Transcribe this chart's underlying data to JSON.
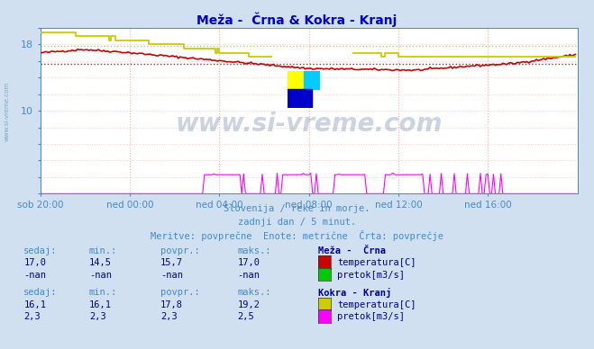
{
  "title": "Meža -  Črna & Kokra - Kranj",
  "title_color": "#0000cc",
  "bg_color": "#d0e0f0",
  "plot_bg_color": "#ffffff",
  "xlim": [
    0,
    288
  ],
  "ylim": [
    0,
    20
  ],
  "xtick_labels": [
    "sob 20:00",
    "ned 00:00",
    "ned 04:00",
    "ned 08:00",
    "ned 12:00",
    "ned 16:00"
  ],
  "xtick_positions": [
    0,
    48,
    96,
    144,
    192,
    240
  ],
  "n_points": 288,
  "mexa_crna_temp_color": "#cc0000",
  "mexa_crna_temp_avg": 15.7,
  "kokra_kranj_temp_color": "#cccc00",
  "kokra_kranj_temp_avg": 17.8,
  "kokra_kranj_pretok_color": "#ff00ff",
  "watermark_text": "www.si-vreme.com",
  "watermark_color": "#1a3a7a",
  "watermark_alpha": 0.22,
  "info_line1": "Slovenija / reke in morje.",
  "info_line2": "zadnji dan / 5 minut.",
  "info_line3": "Meritve: povprečne  Enote: metrične  Črta: povprečje",
  "info_color": "#4488cc",
  "legend_title1": "Meža -  Črna",
  "legend_title2": "Kokra - Kranj",
  "legend_color": "#000099",
  "stat_color": "#000099",
  "stat_label_color": "#4488cc",
  "mexa_green_color": "#00cc00",
  "axis_color": "#4488cc",
  "grid_v_color": "#ffaaaa",
  "grid_h_color": "#ffcccc"
}
